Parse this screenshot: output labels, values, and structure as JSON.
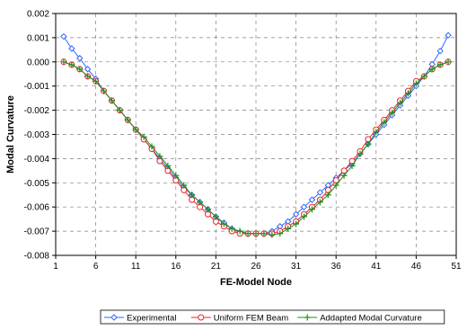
{
  "chart_data": {
    "type": "line",
    "title": "",
    "xlabel": "FE-Model Node",
    "ylabel": "Modal Curvature",
    "xlim": [
      1,
      51
    ],
    "ylim": [
      -0.008,
      0.002
    ],
    "xticks": [
      1,
      6,
      11,
      16,
      21,
      26,
      31,
      36,
      41,
      46,
      51
    ],
    "xtick_labels": [
      "1",
      "6",
      "11",
      "16",
      "21",
      "26",
      "31",
      "36",
      "41",
      "46",
      "51"
    ],
    "yticks": [
      0.002,
      0.001,
      0.0,
      -0.001,
      -0.002,
      -0.003,
      -0.004,
      -0.005,
      -0.006,
      -0.007,
      -0.008
    ],
    "ytick_labels": [
      "0.002",
      "0.001",
      "0.000",
      "-0.001",
      "-0.002",
      "-0.003",
      "-0.004",
      "-0.005",
      "-0.006",
      "-0.007",
      "-0.008"
    ],
    "grid": true,
    "legend_position": "bottom",
    "x": [
      2,
      3,
      4,
      5,
      6,
      7,
      8,
      9,
      10,
      11,
      12,
      13,
      14,
      15,
      16,
      17,
      18,
      19,
      20,
      21,
      22,
      23,
      24,
      25,
      26,
      27,
      28,
      29,
      30,
      31,
      32,
      33,
      34,
      35,
      36,
      37,
      38,
      39,
      40,
      41,
      42,
      43,
      44,
      45,
      46,
      47,
      48,
      49,
      50
    ],
    "series": [
      {
        "name": "Experimental",
        "color": "#3366ff",
        "marker": "diamond",
        "values": [
          0.00105,
          0.00055,
          0.00015,
          -0.0003,
          -0.0007,
          -0.0012,
          -0.0016,
          -0.002,
          -0.0024,
          -0.0028,
          -0.0032,
          -0.0036,
          -0.004,
          -0.0044,
          -0.0048,
          -0.0052,
          -0.0055,
          -0.0058,
          -0.0061,
          -0.0064,
          -0.00665,
          -0.0069,
          -0.00705,
          -0.0071,
          -0.0071,
          -0.0071,
          -0.007,
          -0.0068,
          -0.0066,
          -0.0063,
          -0.006,
          -0.0057,
          -0.0054,
          -0.0051,
          -0.0048,
          -0.0045,
          -0.0042,
          -0.0038,
          -0.0034,
          -0.003,
          -0.0026,
          -0.0022,
          -0.0018,
          -0.0014,
          -0.001,
          -0.0006,
          -0.0001,
          0.00045,
          0.0011
        ]
      },
      {
        "name": "Uniform FEM Beam",
        "color": "#ee2222",
        "marker": "circle",
        "values": [
          0.0,
          -0.00012,
          -0.0003,
          -0.0006,
          -0.0008,
          -0.0012,
          -0.0016,
          -0.002,
          -0.0024,
          -0.0028,
          -0.0032,
          -0.0036,
          -0.0041,
          -0.0045,
          -0.0049,
          -0.0053,
          -0.0057,
          -0.006,
          -0.0063,
          -0.0066,
          -0.0068,
          -0.007,
          -0.0071,
          -0.0071,
          -0.0071,
          -0.0071,
          -0.0071,
          -0.007,
          -0.0068,
          -0.0066,
          -0.0063,
          -0.006,
          -0.0057,
          -0.0053,
          -0.0049,
          -0.0045,
          -0.0041,
          -0.0037,
          -0.0032,
          -0.0028,
          -0.0024,
          -0.002,
          -0.0016,
          -0.0012,
          -0.0008,
          -0.0006,
          -0.0003,
          -0.00012,
          0.0
        ]
      },
      {
        "name": "Addapted Modal Curvature",
        "color": "#228b22",
        "marker": "plus",
        "values": [
          0.0,
          -0.00012,
          -0.0003,
          -0.0006,
          -0.0008,
          -0.0012,
          -0.0016,
          -0.002,
          -0.0024,
          -0.0028,
          -0.0031,
          -0.0035,
          -0.0039,
          -0.0043,
          -0.0047,
          -0.0051,
          -0.0055,
          -0.0058,
          -0.0061,
          -0.0064,
          -0.0067,
          -0.0069,
          -0.007,
          -0.0071,
          -0.0071,
          -0.0071,
          -0.00715,
          -0.0071,
          -0.0069,
          -0.0067,
          -0.0064,
          -0.0061,
          -0.0058,
          -0.0055,
          -0.0051,
          -0.0047,
          -0.0043,
          -0.0038,
          -0.0034,
          -0.0029,
          -0.0025,
          -0.0021,
          -0.0017,
          -0.0013,
          -0.0009,
          -0.0006,
          -0.0003,
          -0.00012,
          0.0
        ]
      }
    ]
  },
  "colors": {
    "background": "#ffffff",
    "axis": "#000000",
    "grid": "#7f7f7f"
  }
}
